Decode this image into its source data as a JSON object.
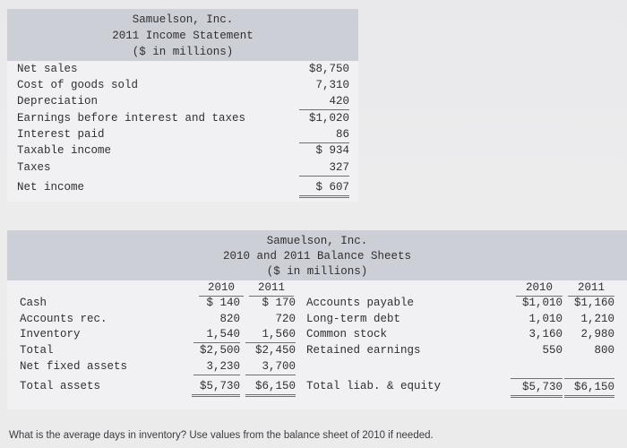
{
  "income_statement": {
    "title_lines": [
      "Samuelson, Inc.",
      "2011 Income Statement",
      "($ in millions)"
    ],
    "rows": [
      {
        "label": "Net sales",
        "value": "$8,750"
      },
      {
        "label": "Cost of goods sold",
        "value": "7,310"
      },
      {
        "label": "Depreciation",
        "value": "420"
      },
      {
        "label": "Earnings before interest and taxes",
        "value": "$1,020"
      },
      {
        "label": "Interest paid",
        "value": "86"
      },
      {
        "label": "Taxable income",
        "value": "$ 934"
      },
      {
        "label": "Taxes",
        "value": "327"
      },
      {
        "label": "Net income",
        "value": "$ 607"
      }
    ]
  },
  "balance_sheet": {
    "title_lines": [
      "Samuelson, Inc.",
      "2010 and 2011 Balance Sheets",
      "($ in millions)"
    ],
    "years": [
      "2010",
      "2011"
    ],
    "assets": [
      {
        "label": "Cash",
        "v2010": "$ 140",
        "v2011": "$ 170"
      },
      {
        "label": "Accounts rec.",
        "v2010": "820",
        "v2011": "720"
      },
      {
        "label": "Inventory",
        "v2010": "1,540",
        "v2011": "1,560"
      },
      {
        "label": "Total",
        "v2010": "$2,500",
        "v2011": "$2,450"
      },
      {
        "label": "Net fixed assets",
        "v2010": "3,230",
        "v2011": "3,700"
      },
      {
        "label": "Total assets",
        "v2010": "$5,730",
        "v2011": "$6,150"
      }
    ],
    "liabilities": [
      {
        "label": "Accounts payable",
        "v2010": "$1,010",
        "v2011": "$1,160"
      },
      {
        "label": "Long-term debt",
        "v2010": "1,010",
        "v2011": "1,210"
      },
      {
        "label": "Common stock",
        "v2010": "3,160",
        "v2011": "2,980"
      },
      {
        "label": "Retained earnings",
        "v2010": "550",
        "v2011": "800"
      },
      {
        "label": "Total liab. & equity",
        "v2010": "$5,730",
        "v2011": "$6,150"
      }
    ]
  },
  "question": "What is the average days in inventory? Use values from the balance sheet of 2010 if needed."
}
